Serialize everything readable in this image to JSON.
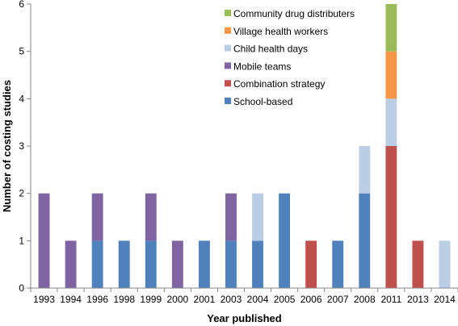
{
  "chart_data": {
    "type": "bar",
    "stacked": true,
    "xlabel": "Year published",
    "ylabel": "Number of costing studies",
    "ylim": [
      0,
      6
    ],
    "yticks": [
      0,
      1,
      2,
      3,
      4,
      5,
      6
    ],
    "grid": false,
    "legend_position": "top-right",
    "categories": [
      "1993",
      "1994",
      "1996",
      "1998",
      "1999",
      "2000",
      "2001",
      "2003",
      "2004",
      "2005",
      "2006",
      "2007",
      "2008",
      "2011",
      "2013",
      "2014"
    ],
    "series": [
      {
        "name": "School-based",
        "color": "#4f81bd",
        "values": [
          0,
          0,
          1,
          1,
          1,
          0,
          1,
          1,
          1,
          2,
          0,
          1,
          2,
          0,
          0,
          0
        ]
      },
      {
        "name": "Combination strategy",
        "color": "#c0504d",
        "values": [
          0,
          0,
          0,
          0,
          0,
          0,
          0,
          0,
          0,
          0,
          1,
          0,
          0,
          3,
          1,
          0
        ]
      },
      {
        "name": "Mobile teams",
        "color": "#8064a2",
        "values": [
          2,
          1,
          1,
          0,
          1,
          1,
          0,
          1,
          0,
          0,
          0,
          0,
          0,
          0,
          0,
          0
        ]
      },
      {
        "name": "Child health days",
        "color": "#b9cde5",
        "values": [
          0,
          0,
          0,
          0,
          0,
          0,
          0,
          0,
          1,
          0,
          0,
          0,
          1,
          1,
          0,
          1
        ]
      },
      {
        "name": "Village health workers",
        "color": "#f79646",
        "values": [
          0,
          0,
          0,
          0,
          0,
          0,
          0,
          0,
          0,
          0,
          0,
          0,
          0,
          1,
          0,
          0
        ]
      },
      {
        "name": "Community drug distributers",
        "color": "#9bbb59",
        "values": [
          0,
          0,
          0,
          0,
          0,
          0,
          0,
          0,
          0,
          0,
          0,
          0,
          0,
          1,
          0,
          0
        ]
      }
    ],
    "legend_order": [
      "Community drug distributers",
      "Village health workers",
      "Child health days",
      "Mobile teams",
      "Combination strategy",
      "School-based"
    ]
  }
}
